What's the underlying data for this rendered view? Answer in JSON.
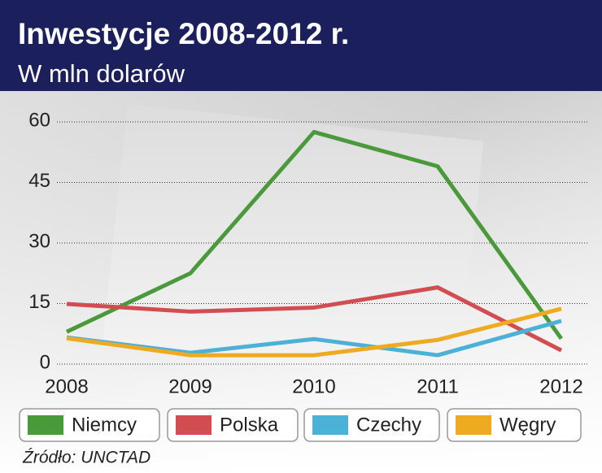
{
  "chart_data": {
    "type": "line",
    "title": "Inwestycje 2008-2012 r.",
    "subtitle": "W mln dolarów",
    "categories": [
      "2008",
      "2009",
      "2010",
      "2011",
      "2012"
    ],
    "series": [
      {
        "name": "Niemcy",
        "color": "#4a9a3c",
        "values": [
          8,
          22.5,
          57.5,
          49,
          6.3
        ]
      },
      {
        "name": "Polska",
        "color": "#d24d52",
        "values": [
          14.9,
          13,
          14,
          19,
          3.4
        ]
      },
      {
        "name": "Czechy",
        "color": "#4cb1d6",
        "values": [
          6.6,
          2.8,
          6.2,
          2.2,
          10.7
        ]
      },
      {
        "name": "Węgry",
        "color": "#eeaa20",
        "values": [
          6.4,
          2.2,
          2.2,
          6,
          13.7
        ]
      }
    ],
    "ylim": [
      0,
      60
    ],
    "yticks": [
      0,
      15,
      30,
      45,
      60
    ],
    "grid": true,
    "legend": "bottom",
    "source": "Źródło: UNCTAD"
  }
}
